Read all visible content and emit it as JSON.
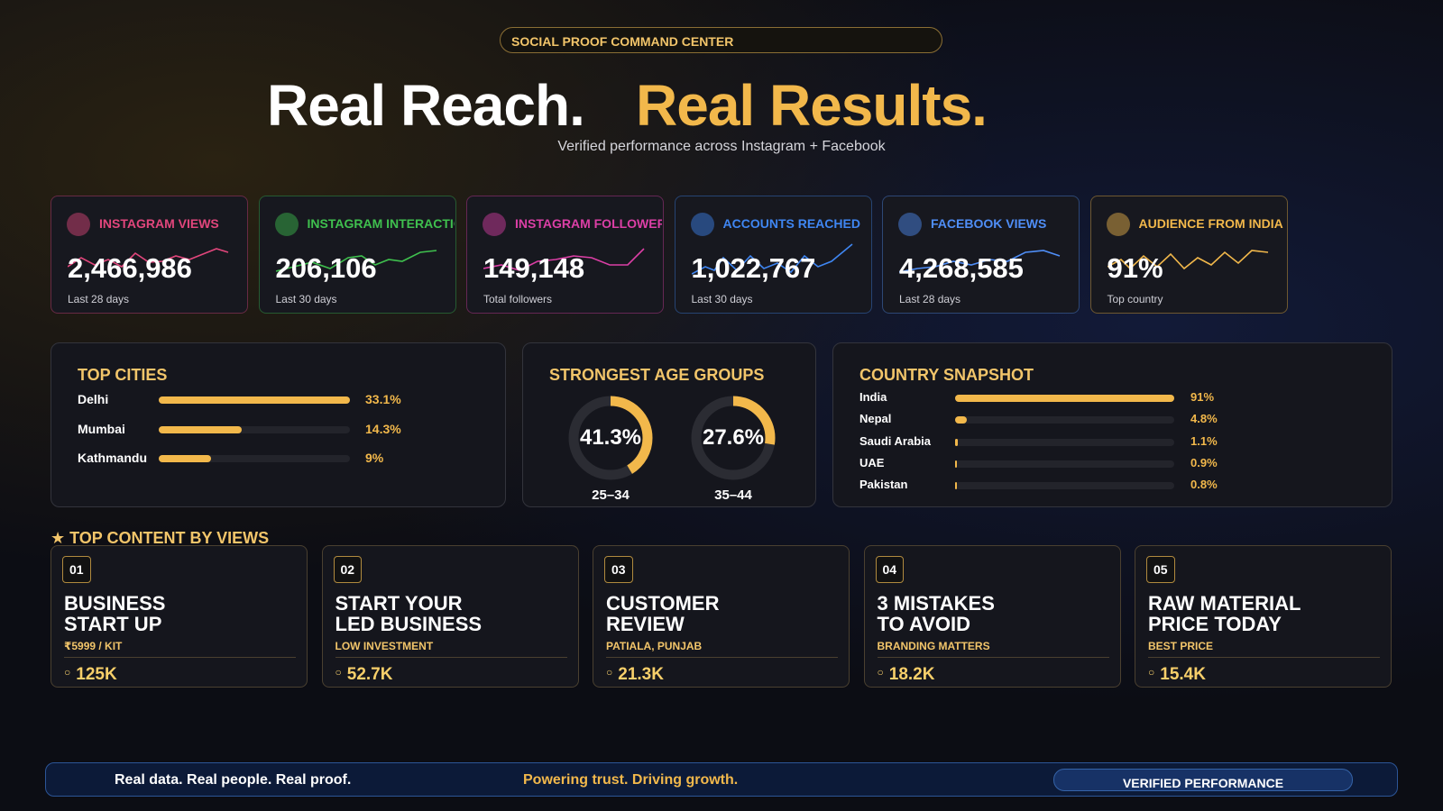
{
  "header": {
    "badge": "SOCIAL PROOF COMMAND CENTER",
    "title_white": "Real Reach.",
    "title_gold": "Real Results.",
    "subtitle": "Verified performance across Instagram + Facebook"
  },
  "stats": [
    {
      "label": "INSTAGRAM VIEWS",
      "value": "2,466,986",
      "caption": "Last 28 days",
      "color": "#e2467c"
    },
    {
      "label": "INSTAGRAM INTERACTIO",
      "value": "206,106",
      "caption": "Last 30 days",
      "color": "#3fc04e"
    },
    {
      "label": "INSTAGRAM FOLLOWERS",
      "value": "149,148",
      "caption": "Total followers",
      "color": "#dc3fa6"
    },
    {
      "label": "ACCOUNTS REACHED",
      "value": "1,022,767",
      "caption": "Last 30 days",
      "color": "#3f86f2"
    },
    {
      "label": "FACEBOOK VIEWS",
      "value": "4,268,585",
      "caption": "Last 28 days",
      "color": "#4f8ef7"
    },
    {
      "label": "AUDIENCE FROM INDIA",
      "value": "91%",
      "caption": "Top country",
      "color": "#f2b84b"
    }
  ],
  "top_cities": {
    "title": "TOP CITIES",
    "items": [
      {
        "name": "Delhi",
        "value": 33.1,
        "label": "33.1%"
      },
      {
        "name": "Mumbai",
        "value": 14.3,
        "label": "14.3%"
      },
      {
        "name": "Kathmandu",
        "value": 9,
        "label": "9%"
      }
    ]
  },
  "age_groups": {
    "title": "STRONGEST AGE GROUPS",
    "items": [
      {
        "name": "25–34",
        "value": 41.3,
        "label": "41.3%"
      },
      {
        "name": "35–44",
        "value": 27.6,
        "label": "27.6%"
      }
    ]
  },
  "country_snapshot": {
    "title": "COUNTRY SNAPSHOT",
    "items": [
      {
        "name": "India",
        "value": 91,
        "label": "91%"
      },
      {
        "name": "Nepal",
        "value": 4.8,
        "label": "4.8%"
      },
      {
        "name": "Saudi Arabia",
        "value": 1.1,
        "label": "1.1%"
      },
      {
        "name": "UAE",
        "value": 0.9,
        "label": "0.9%"
      },
      {
        "name": "Pakistan",
        "value": 0.8,
        "label": "0.8%"
      }
    ]
  },
  "top_content": {
    "title": "TOP CONTENT BY VIEWS",
    "items": [
      {
        "rank": "01",
        "title": [
          "BUSINESS",
          "START UP"
        ],
        "subtitle": "₹5999 / KIT",
        "views": "125K"
      },
      {
        "rank": "02",
        "title": [
          "START YOUR",
          "LED BUSINESS"
        ],
        "subtitle": "LOW INVESTMENT",
        "views": "52.7K"
      },
      {
        "rank": "03",
        "title": [
          "CUSTOMER",
          "REVIEW"
        ],
        "subtitle": "PATIALA, PUNJAB",
        "views": "21.3K"
      },
      {
        "rank": "04",
        "title": [
          "3 MISTAKES",
          "TO AVOID"
        ],
        "subtitle": "BRANDING MATTERS",
        "views": "18.2K"
      },
      {
        "rank": "05",
        "title": [
          "RAW MATERIAL",
          "PRICE TODAY"
        ],
        "subtitle": "BEST PRICE",
        "views": "15.4K"
      }
    ]
  },
  "footer": {
    "left": "Real data. Real people. Real proof.",
    "center": "Powering trust. Driving growth.",
    "button": "VERIFIED PERFORMANCE"
  }
}
